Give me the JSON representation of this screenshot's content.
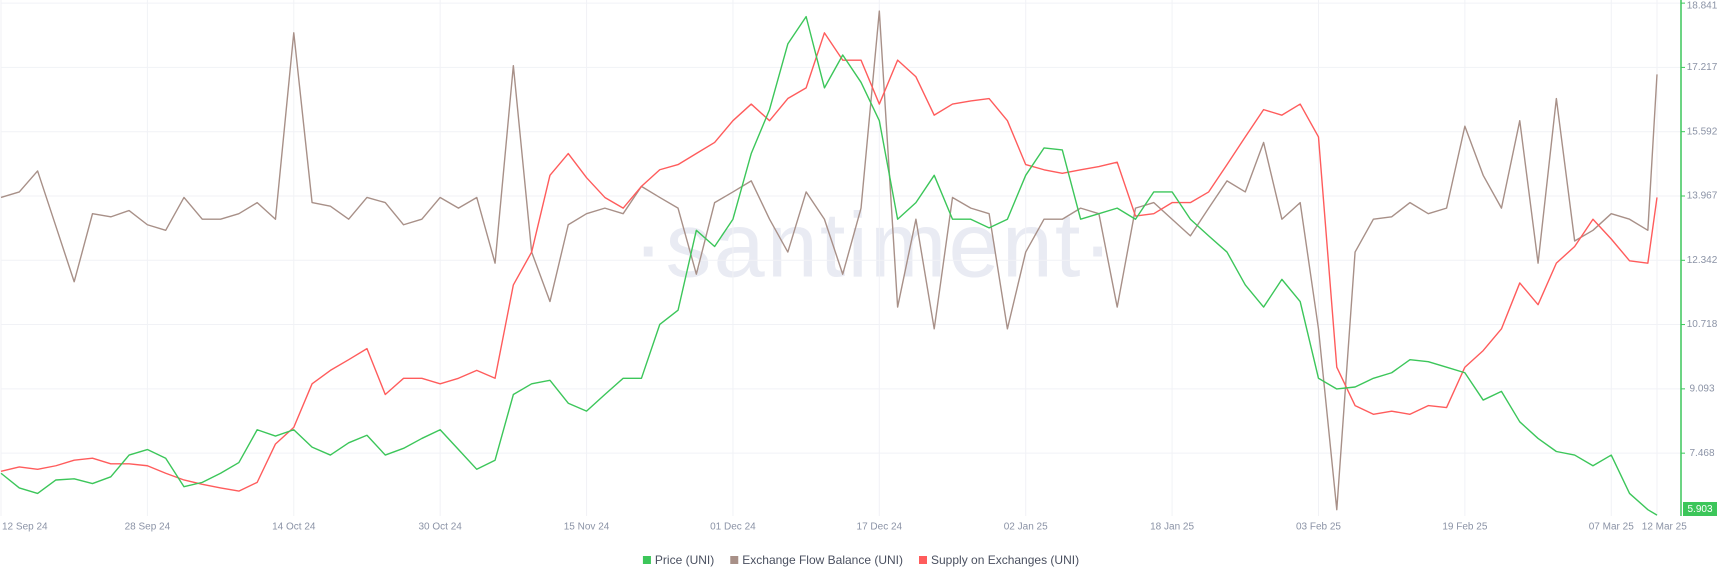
{
  "chart_data": {
    "type": "line",
    "watermark": "·santiment·",
    "x": [
      "2024-09-12",
      "2024-09-14",
      "2024-09-16",
      "2024-09-18",
      "2024-09-20",
      "2024-09-22",
      "2024-09-24",
      "2024-09-26",
      "2024-09-28",
      "2024-09-30",
      "2024-10-02",
      "2024-10-04",
      "2024-10-06",
      "2024-10-08",
      "2024-10-10",
      "2024-10-12",
      "2024-10-14",
      "2024-10-16",
      "2024-10-18",
      "2024-10-20",
      "2024-10-22",
      "2024-10-24",
      "2024-10-26",
      "2024-10-28",
      "2024-10-30",
      "2024-11-01",
      "2024-11-03",
      "2024-11-05",
      "2024-11-07",
      "2024-11-09",
      "2024-11-11",
      "2024-11-13",
      "2024-11-15",
      "2024-11-17",
      "2024-11-19",
      "2024-11-21",
      "2024-11-23",
      "2024-11-25",
      "2024-11-27",
      "2024-11-29",
      "2024-12-01",
      "2024-12-03",
      "2024-12-05",
      "2024-12-07",
      "2024-12-09",
      "2024-12-11",
      "2024-12-13",
      "2024-12-15",
      "2024-12-17",
      "2024-12-19",
      "2024-12-21",
      "2024-12-23",
      "2024-12-25",
      "2024-12-27",
      "2024-12-29",
      "2024-12-31",
      "2025-01-02",
      "2025-01-04",
      "2025-01-06",
      "2025-01-08",
      "2025-01-10",
      "2025-01-12",
      "2025-01-14",
      "2025-01-16",
      "2025-01-18",
      "2025-01-20",
      "2025-01-22",
      "2025-01-24",
      "2025-01-26",
      "2025-01-28",
      "2025-01-30",
      "2025-02-01",
      "2025-02-03",
      "2025-02-05",
      "2025-02-07",
      "2025-02-09",
      "2025-02-11",
      "2025-02-13",
      "2025-02-15",
      "2025-02-17",
      "2025-02-19",
      "2025-02-21",
      "2025-02-23",
      "2025-02-25",
      "2025-02-27",
      "2025-03-01",
      "2025-03-03",
      "2025-03-05",
      "2025-03-07",
      "2025-03-09",
      "2025-03-11",
      "2025-03-12"
    ],
    "series": [
      {
        "name": "Price (UNI)",
        "color": "#3cc65a",
        "values": [
          6.96,
          6.59,
          6.45,
          6.79,
          6.82,
          6.7,
          6.87,
          7.42,
          7.56,
          7.34,
          6.62,
          6.73,
          6.96,
          7.23,
          8.06,
          7.9,
          8.06,
          7.62,
          7.42,
          7.73,
          7.92,
          7.42,
          7.59,
          7.84,
          8.06,
          7.56,
          7.06,
          7.29,
          8.95,
          9.22,
          9.31,
          8.73,
          8.53,
          8.95,
          9.36,
          9.36,
          10.72,
          11.08,
          13.1,
          12.69,
          13.38,
          15.04,
          16.15,
          17.81,
          18.5,
          16.7,
          17.53,
          16.84,
          15.87,
          13.38,
          13.8,
          14.49,
          13.38,
          13.38,
          13.16,
          13.38,
          14.49,
          15.18,
          15.13,
          13.38,
          13.52,
          13.66,
          13.38,
          14.07,
          14.07,
          13.38,
          12.96,
          12.55,
          11.72,
          11.16,
          11.86,
          11.3,
          9.36,
          9.09,
          9.14,
          9.36,
          9.5,
          9.83,
          9.78,
          9.64,
          9.5,
          8.81,
          9.03,
          8.26,
          7.84,
          7.51,
          7.42,
          7.15,
          7.42,
          6.45,
          6.04,
          5.903
        ]
      },
      {
        "name": "Exchange Flow Balance (UNI)",
        "color": "#a89088",
        "values": [
          13.93,
          14.07,
          14.6,
          13.2,
          11.8,
          13.52,
          13.44,
          13.6,
          13.24,
          13.1,
          13.93,
          13.38,
          13.38,
          13.52,
          13.8,
          13.38,
          18.09,
          13.8,
          13.71,
          13.38,
          13.93,
          13.8,
          13.24,
          13.38,
          13.93,
          13.66,
          13.93,
          12.27,
          17.26,
          12.55,
          11.3,
          13.24,
          13.52,
          13.66,
          13.52,
          14.21,
          13.93,
          13.66,
          11.99,
          13.8,
          14.07,
          14.35,
          13.38,
          12.55,
          14.07,
          13.38,
          11.99,
          13.66,
          18.64,
          11.16,
          13.38,
          10.61,
          13.93,
          13.66,
          13.52,
          10.61,
          12.55,
          13.38,
          13.38,
          13.66,
          13.52,
          11.16,
          13.66,
          13.8,
          13.38,
          12.96,
          13.66,
          14.35,
          14.07,
          15.32,
          13.38,
          13.8,
          10.61,
          6.04,
          12.55,
          13.38,
          13.44,
          13.8,
          13.52,
          13.66,
          15.73,
          14.49,
          13.66,
          15.87,
          12.27,
          16.43,
          12.83,
          13.1,
          13.52,
          13.38,
          13.1,
          17.04
        ]
      },
      {
        "name": "Supply on Exchanges (UNI)",
        "color": "#ff5c5c",
        "values": [
          7.01,
          7.12,
          7.06,
          7.15,
          7.29,
          7.34,
          7.2,
          7.2,
          7.15,
          6.96,
          6.79,
          6.68,
          6.59,
          6.51,
          6.73,
          7.7,
          8.12,
          9.22,
          9.56,
          9.83,
          10.11,
          8.95,
          9.36,
          9.36,
          9.22,
          9.36,
          9.56,
          9.36,
          11.72,
          12.55,
          14.49,
          15.04,
          14.43,
          13.93,
          13.66,
          14.21,
          14.63,
          14.76,
          15.04,
          15.32,
          15.87,
          16.29,
          15.87,
          16.43,
          16.7,
          18.09,
          17.4,
          17.4,
          16.29,
          17.4,
          16.98,
          16.01,
          16.29,
          16.37,
          16.43,
          15.87,
          14.76,
          14.63,
          14.54,
          14.63,
          14.71,
          14.82,
          13.46,
          13.52,
          13.8,
          13.8,
          14.07,
          14.76,
          15.46,
          16.15,
          16.01,
          16.29,
          15.46,
          9.64,
          8.67,
          8.45,
          8.53,
          8.45,
          8.67,
          8.62,
          9.64,
          10.06,
          10.61,
          11.77,
          11.22,
          12.27,
          12.69,
          13.38,
          12.88,
          12.33,
          12.27,
          13.93
        ]
      }
    ],
    "xlim": [
      "2024-09-12",
      "2025-03-12"
    ],
    "xticks": [
      {
        "value": "2024-09-12",
        "label": "12 Sep 24"
      },
      {
        "value": "2024-09-28",
        "label": "28 Sep 24"
      },
      {
        "value": "2024-10-14",
        "label": "14 Oct 24"
      },
      {
        "value": "2024-10-30",
        "label": "30 Oct 24"
      },
      {
        "value": "2024-11-15",
        "label": "15 Nov 24"
      },
      {
        "value": "2024-12-01",
        "label": "01 Dec 24"
      },
      {
        "value": "2024-12-17",
        "label": "17 Dec 24"
      },
      {
        "value": "2025-01-02",
        "label": "02 Jan 25"
      },
      {
        "value": "2025-01-18",
        "label": "18 Jan 25"
      },
      {
        "value": "2025-02-03",
        "label": "03 Feb 25"
      },
      {
        "value": "2025-02-19",
        "label": "19 Feb 25"
      },
      {
        "value": "2025-03-07",
        "label": "07 Mar 25"
      },
      {
        "value": "2025-03-12",
        "label": "12 Mar 25"
      }
    ],
    "ylim": [
      5.88,
      18.92
    ],
    "yticks": [
      7.468,
      9.093,
      10.718,
      12.342,
      13.967,
      15.592,
      17.217,
      18.841
    ],
    "grid": true
  }
}
